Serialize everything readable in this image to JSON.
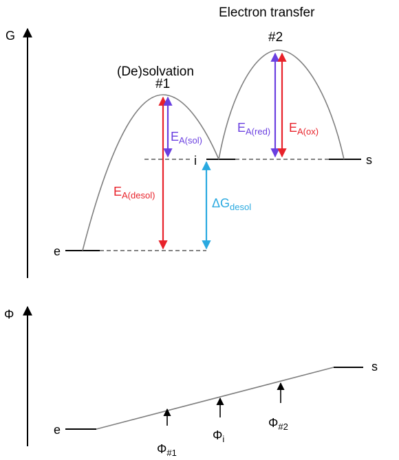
{
  "top_panel": {
    "axis_label": "G",
    "stage1_title": "(De)solvation",
    "stage2_title": "Electron transfer",
    "peak1_label": "#1",
    "peak2_label": "#2",
    "state_e": "e",
    "state_i": "i",
    "state_s": "s",
    "ea_sol": {
      "main": "E",
      "sub": "A(sol)"
    },
    "ea_desol": {
      "main": "E",
      "sub": "A(desol)"
    },
    "ea_red": {
      "main": "E",
      "sub": "A(red)"
    },
    "ea_ox": {
      "main": "E",
      "sub": "A(ox)"
    },
    "dg_desol": {
      "main": "ΔG",
      "sub": "desol"
    }
  },
  "bottom_panel": {
    "axis_label": "Φ",
    "state_e": "e",
    "state_s": "s",
    "phi1": {
      "main": "Φ",
      "sub": "#1"
    },
    "phii": {
      "main": "Φ",
      "sub": "i"
    },
    "phi2": {
      "main": "Φ",
      "sub": "#2"
    }
  },
  "colors": {
    "red": "#e8222a",
    "purple": "#6a3fe0",
    "cyan": "#29a9e0",
    "curve": "#7f7f7f",
    "line": "#000000"
  }
}
